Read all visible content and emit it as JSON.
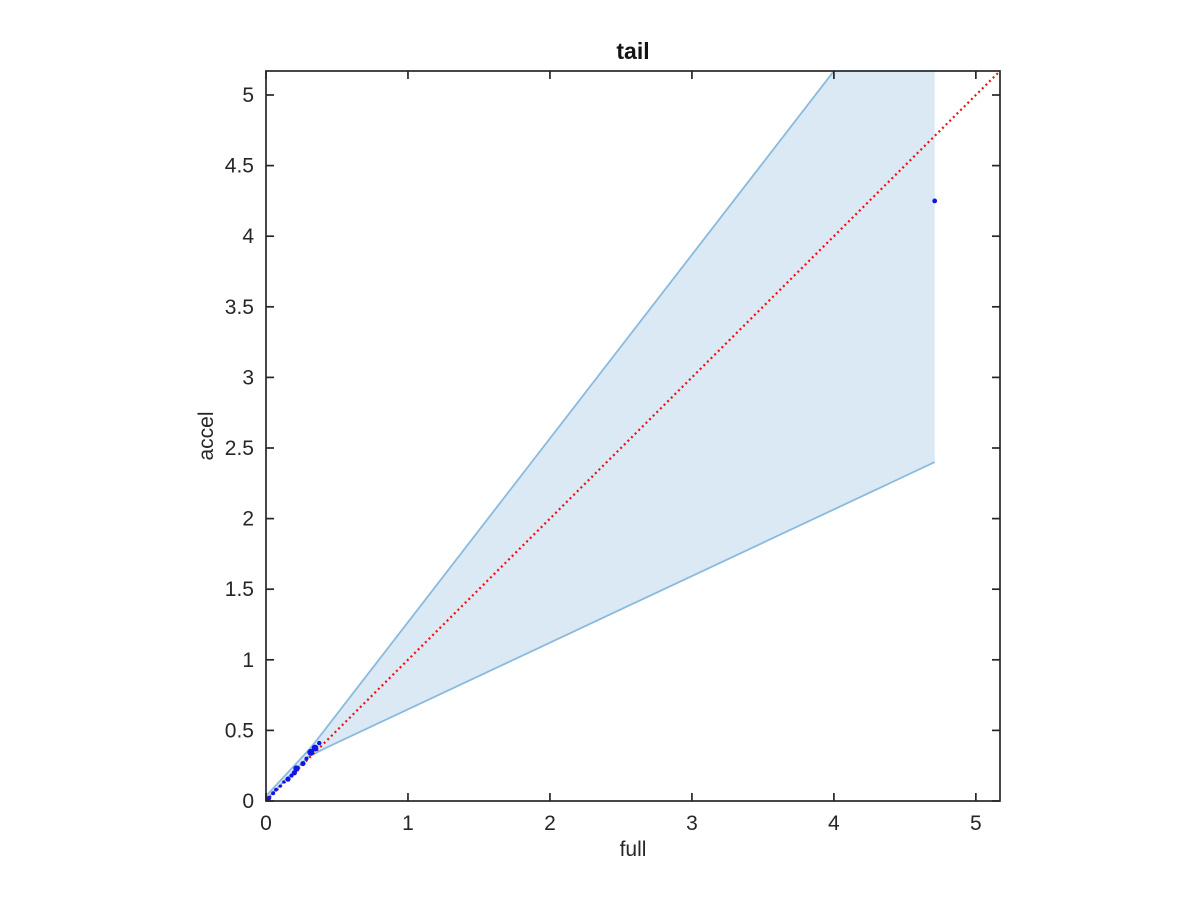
{
  "figure": {
    "background": "#ffffff"
  },
  "chart_data": {
    "type": "scatter",
    "title": "tail",
    "xlabel": "full",
    "ylabel": "accel",
    "xlim": [
      0,
      5.17
    ],
    "ylim": [
      0,
      5.17
    ],
    "grid": false,
    "legend": null,
    "xticks": {
      "values": [
        0,
        1,
        2,
        3,
        4,
        5
      ],
      "labels": [
        "0",
        "1",
        "2",
        "3",
        "4",
        "5"
      ]
    },
    "yticks": {
      "values": [
        0,
        0.5,
        1,
        1.5,
        2,
        2.5,
        3,
        3.5,
        4,
        4.5,
        5
      ],
      "labels": [
        "0",
        "0.5",
        "1",
        "1.5",
        "2",
        "2.5",
        "3",
        "3.5",
        "4",
        "4.5",
        "5"
      ]
    },
    "identity_line": {
      "style": "dotted",
      "color": "#f20d0d",
      "points": [
        [
          0,
          0
        ],
        [
          5.3,
          5.3
        ]
      ]
    },
    "confidence_band": {
      "fill": "#dbe9f5",
      "edge_color": "#8abade",
      "upper_edge": [
        [
          0,
          0.035
        ],
        [
          0.3,
          0.36
        ],
        [
          0.38,
          0.46
        ],
        [
          4.1,
          5.3
        ]
      ],
      "lower_edge": [
        [
          0,
          0.01
        ],
        [
          0.3,
          0.315
        ],
        [
          0.44,
          0.385
        ],
        [
          4.71,
          2.4
        ]
      ],
      "right_x": 4.71,
      "top_y": 5.3
    },
    "scatter_points": {
      "color": "#0e17e3",
      "data": [
        [
          0.02,
          0.02,
          2.4
        ],
        [
          0.05,
          0.055,
          2.0
        ],
        [
          0.07,
          0.08,
          1.8
        ],
        [
          0.1,
          0.105,
          1.6
        ],
        [
          0.125,
          0.135,
          1.6
        ],
        [
          0.155,
          0.155,
          2.6
        ],
        [
          0.18,
          0.18,
          2.0
        ],
        [
          0.2,
          0.2,
          2.6
        ],
        [
          0.215,
          0.23,
          3.2
        ],
        [
          0.26,
          0.265,
          2.6
        ],
        [
          0.285,
          0.3,
          2.0
        ],
        [
          0.315,
          0.345,
          3.4
        ],
        [
          0.345,
          0.375,
          3.4
        ],
        [
          0.375,
          0.41,
          2.2
        ],
        [
          4.71,
          4.25,
          2.4
        ]
      ]
    },
    "axes_color": "#262626",
    "tick_label_color": "#262626"
  }
}
